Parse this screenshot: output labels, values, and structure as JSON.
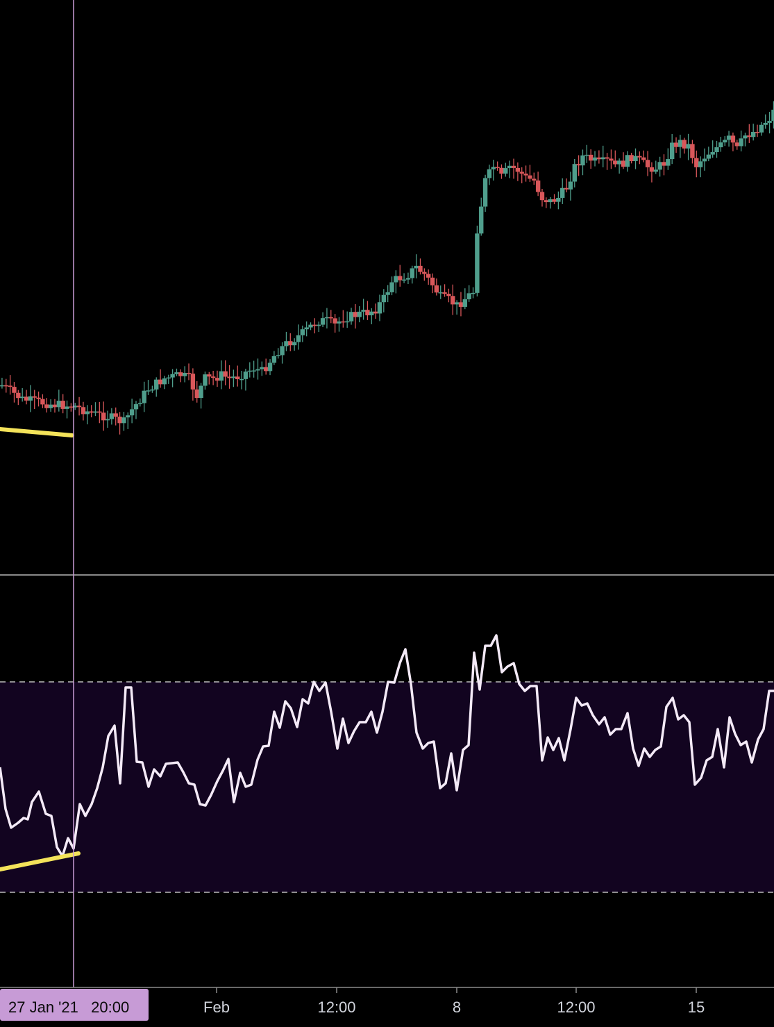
{
  "colors": {
    "background": "#000000",
    "bull": "#4f9e8c",
    "bear": "#d9575a",
    "rsi_line": "#f4eaf7",
    "rsi_band": "#120420",
    "band_lines": "#bdbdbd",
    "divergence": "#f4e35a",
    "crosshair": "#c79bd6",
    "crosshair_badge": "#c79bd6",
    "separator": "#8a8a8a",
    "axis_text": "#d1d4dc"
  },
  "crosshair": {
    "label": "27 Jan '21   20:00"
  },
  "chart_data": [
    {
      "type": "candlestick",
      "name": "",
      "x_axis": {
        "tick_labels": [
          "Feb",
          "12:00",
          "8",
          "12:00",
          "15"
        ]
      },
      "ylim": [
        0,
        1000
      ],
      "grid": false,
      "candles": []
    },
    {
      "type": "line",
      "name": "",
      "ylim": [
        0,
        100
      ],
      "bands": {
        "upper": 70,
        "lower": 30
      },
      "values": []
    }
  ]
}
